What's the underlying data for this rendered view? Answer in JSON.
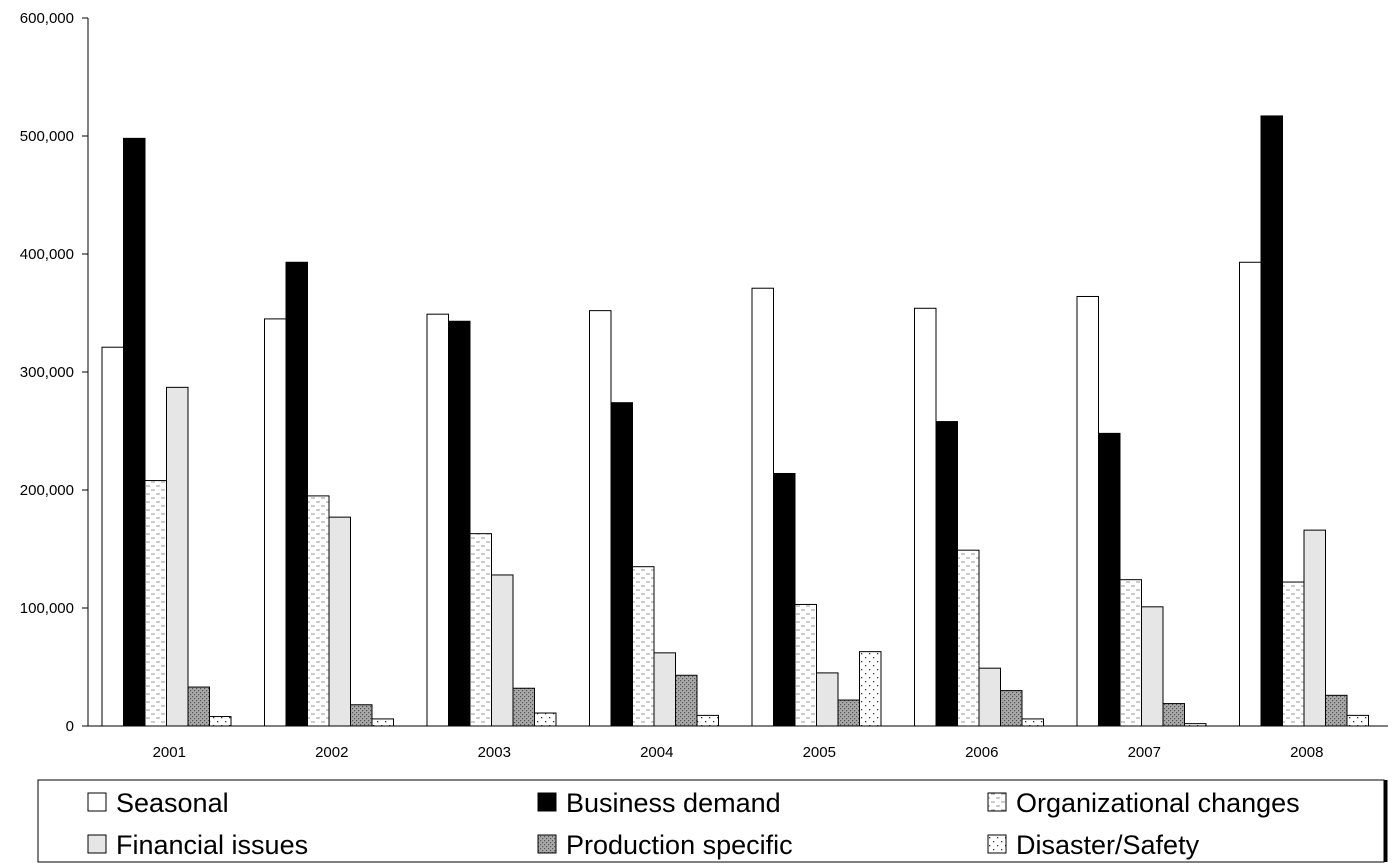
{
  "chart_data": {
    "type": "bar",
    "title": "",
    "xlabel": "",
    "ylabel": "",
    "ylim": [
      0,
      600000
    ],
    "yticks": [
      0,
      100000,
      200000,
      300000,
      400000,
      500000,
      600000
    ],
    "ytick_labels": [
      "0",
      "100,000",
      "200,000",
      "300,000",
      "400,000",
      "500,000",
      "600,000"
    ],
    "grid": false,
    "legend_position": "bottom",
    "categories": [
      "2001",
      "2002",
      "2003",
      "2004",
      "2005",
      "2006",
      "2007",
      "2008"
    ],
    "series": [
      {
        "name": "Seasonal",
        "values": [
          321000,
          345000,
          349000,
          352000,
          371000,
          354000,
          364000,
          393000
        ]
      },
      {
        "name": "Business demand",
        "values": [
          498000,
          393000,
          343000,
          274000,
          214000,
          258000,
          248000,
          517000
        ]
      },
      {
        "name": "Organizational changes",
        "values": [
          208000,
          195000,
          163000,
          135000,
          103000,
          149000,
          124000,
          122000
        ]
      },
      {
        "name": "Financial issues",
        "values": [
          287000,
          177000,
          128000,
          62000,
          45000,
          49000,
          101000,
          166000
        ]
      },
      {
        "name": "Production specific",
        "values": [
          33000,
          18000,
          32000,
          43000,
          22000,
          30000,
          19000,
          26000
        ]
      },
      {
        "name": "Disaster/Safety",
        "values": [
          8000,
          6000,
          11000,
          9000,
          63000,
          6000,
          2000,
          9000
        ]
      }
    ]
  }
}
